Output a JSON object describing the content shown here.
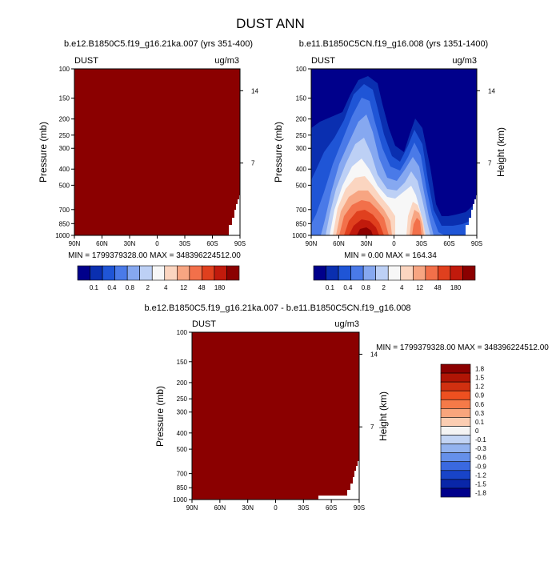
{
  "title": "DUST ANN",
  "panels": [
    {
      "title": "b.e12.B1850C5.f19_g16.21ka.007 (yrs 351-400)",
      "variable": "DUST",
      "units": "ug/m3",
      "ylabel": "Pressure (mb)",
      "ylabel2": "",
      "stats": "MIN = 1799379328.00  MAX = 348396224512.00"
    },
    {
      "title": "b.e11.B1850C5CN.f19_g16.008 (yrs 1351-1400)",
      "variable": "DUST",
      "units": "ug/m3",
      "ylabel": "Pressure (mb)",
      "ylabel2": "Height (km)",
      "stats": "MIN =   0.00  MAX = 164.34"
    },
    {
      "title": "b.e12.B1850C5.f19_g16.21ka.007 - b.e11.B1850C5CN.f19_g16.008",
      "variable": "DUST",
      "units": "ug/m3",
      "ylabel": "Pressure (mb)",
      "ylabel2": "Height (km)",
      "stats": "MIN = 1799379328.00  MAX = 348396224512.00"
    }
  ],
  "colors": {
    "dark_red": "#8b0000",
    "abs_scale": [
      "#00008b",
      "#0a2fb0",
      "#1f55d6",
      "#4a7ae8",
      "#86a8f0",
      "#bdd0f5",
      "#f7f7f7",
      "#fbd5c0",
      "#f7a582",
      "#f2704a",
      "#e0401e",
      "#c11a0c",
      "#8b0000"
    ],
    "diff_scale": [
      "#8b0000",
      "#b01505",
      "#d03010",
      "#ee5020",
      "#f57a48",
      "#f8a57c",
      "#fbcdb2",
      "#f4f4f4",
      "#c2d4f4",
      "#93b3ef",
      "#6590ea",
      "#3a69e0",
      "#1844c8",
      "#0926a8",
      "#00008b"
    ]
  },
  "chart_data": [
    {
      "type": "heatmap",
      "title": "b.e12.B1850C5.f19_g16.21ka.007 (yrs 351-400)",
      "ylabel": "Pressure (mb)",
      "x": [
        "90N",
        "60N",
        "30N",
        "0",
        "30S",
        "60S",
        "90S"
      ],
      "y_ticks": [
        100,
        150,
        200,
        250,
        300,
        400,
        500,
        700,
        850,
        1000
      ],
      "y2_ticks": [
        14,
        7
      ],
      "ylim": [
        1000,
        100
      ],
      "min": 1799379328.0,
      "max": 348396224512.0,
      "colorbar_labels": [
        "0.1",
        "0.4",
        "0.8",
        "2",
        "4",
        "12",
        "48",
        "180"
      ]
    },
    {
      "type": "heatmap",
      "title": "b.e11.B1850C5CN.f19_g16.008 (yrs 1351-1400)",
      "ylabel": "Pressure (mb)",
      "y2label": "Height (km)",
      "x": [
        "90N",
        "60N",
        "30N",
        "0",
        "30S",
        "60S",
        "90S"
      ],
      "y_ticks": [
        100,
        150,
        200,
        250,
        300,
        400,
        500,
        700,
        850,
        1000
      ],
      "y2_ticks": [
        14,
        7
      ],
      "ylim": [
        1000,
        100
      ],
      "min": 0.0,
      "max": 164.34,
      "colorbar_labels": [
        "0.1",
        "0.4",
        "0.8",
        "2",
        "4",
        "12",
        "48",
        "180"
      ]
    },
    {
      "type": "heatmap",
      "title": "b.e12.B1850C5.f19_g16.21ka.007 - b.e11.B1850C5CN.f19_g16.008",
      "ylabel": "Pressure (mb)",
      "y2label": "Height (km)",
      "x": [
        "90N",
        "60N",
        "30N",
        "0",
        "30S",
        "60S",
        "90S"
      ],
      "y_ticks": [
        100,
        150,
        200,
        250,
        300,
        400,
        500,
        700,
        850,
        1000
      ],
      "y2_ticks": [
        14,
        7
      ],
      "ylim": [
        1000,
        100
      ],
      "min": 1799379328.0,
      "max": 348396224512.0,
      "colorbar_labels": [
        "1.8",
        "1.5",
        "1.2",
        "0.9",
        "0.6",
        "0.3",
        "0.1",
        "0",
        "-0.1",
        "-0.3",
        "-0.6",
        "-0.9",
        "-1.2",
        "-1.5",
        "-1.8"
      ]
    }
  ]
}
